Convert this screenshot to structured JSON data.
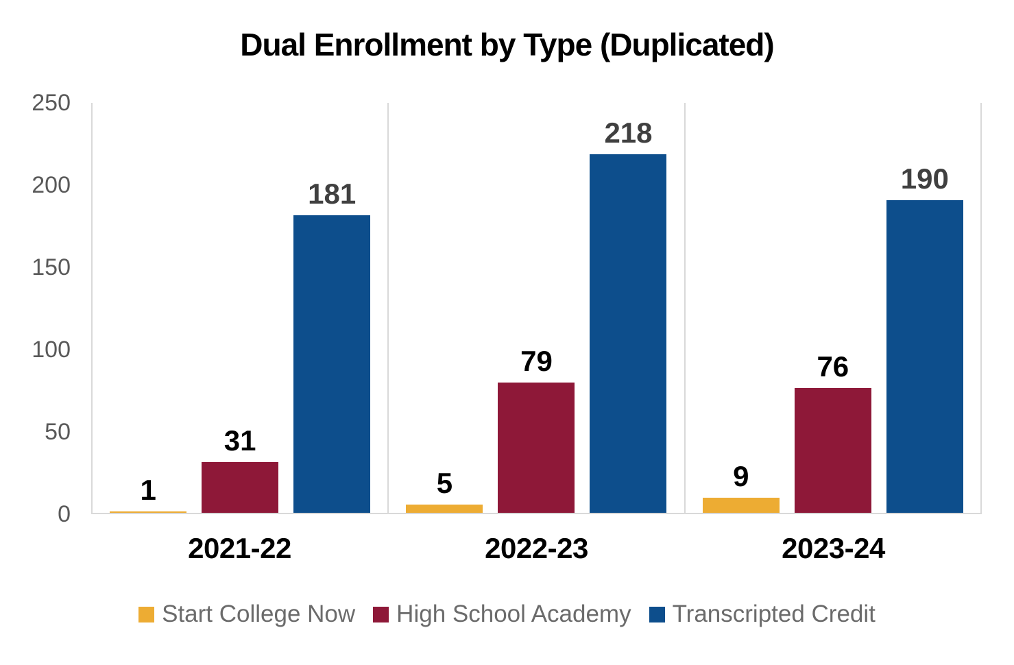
{
  "chart_data": {
    "type": "bar",
    "title": "Dual Enrollment by Type (Duplicated)",
    "categories": [
      "2021-22",
      "2022-23",
      "2023-24"
    ],
    "series": [
      {
        "name": "Start College Now",
        "color": "#EDAC33",
        "label_color": "#000000",
        "values": [
          1,
          5,
          9
        ]
      },
      {
        "name": "High School Academy",
        "color": "#8E1838",
        "label_color": "#000000",
        "values": [
          31,
          79,
          76
        ]
      },
      {
        "name": "Transcripted Credit",
        "color": "#0D4E8C",
        "label_color": "#404040",
        "values": [
          181,
          218,
          190
        ]
      }
    ],
    "ylim": [
      0,
      250
    ],
    "yticks": [
      0,
      50,
      100,
      150,
      200,
      250
    ],
    "grid": "vertical-category-separators-only",
    "legend_position": "bottom",
    "data_labels": true
  },
  "styles": {
    "axis_text_color": "#595959",
    "category_text_color": "#000000",
    "legend_text_color": "#6B6B6B",
    "gridline_color": "#D9D9D9",
    "title_color": "#000000",
    "background": "#FFFFFF"
  }
}
